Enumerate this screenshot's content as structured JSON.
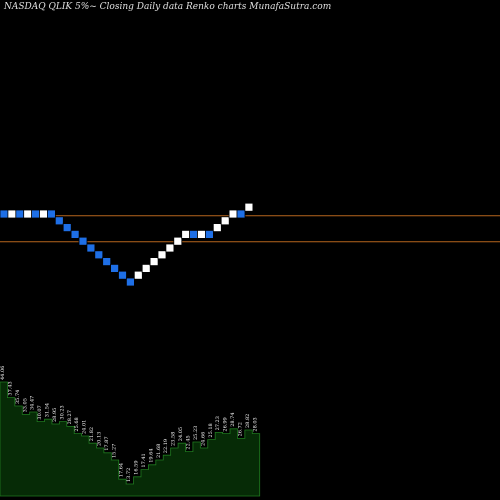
{
  "caption": "NASDAQ QLIK 5%~ Closing Daily data Renko charts MunafaSutra.com",
  "colors": {
    "background": "#000000",
    "up_brick": "#ffffff",
    "down_brick": "#1e6fe6",
    "brick_stroke": "#000000",
    "level_line": "#b5651d",
    "volume_fill": "#062b06",
    "volume_stroke": "#1f7a1f",
    "volume_label": "#ffffff"
  },
  "chart_data": {
    "type": "renko",
    "title": "NASDAQ QLIK 5%~ Closing Daily data Renko charts MunafaSutra.com",
    "brick_size_pct": 5,
    "bricks": [
      {
        "col": 0,
        "level": 10,
        "dir": "down"
      },
      {
        "col": 1,
        "level": 10,
        "dir": "up"
      },
      {
        "col": 2,
        "level": 10,
        "dir": "down"
      },
      {
        "col": 3,
        "level": 10,
        "dir": "up"
      },
      {
        "col": 4,
        "level": 10,
        "dir": "down"
      },
      {
        "col": 5,
        "level": 10,
        "dir": "up"
      },
      {
        "col": 6,
        "level": 10,
        "dir": "down"
      },
      {
        "col": 7,
        "level": 9,
        "dir": "down"
      },
      {
        "col": 8,
        "level": 8,
        "dir": "down"
      },
      {
        "col": 9,
        "level": 7,
        "dir": "down"
      },
      {
        "col": 10,
        "level": 6,
        "dir": "down"
      },
      {
        "col": 11,
        "level": 5,
        "dir": "down"
      },
      {
        "col": 12,
        "level": 4,
        "dir": "down"
      },
      {
        "col": 13,
        "level": 3,
        "dir": "down"
      },
      {
        "col": 14,
        "level": 2,
        "dir": "down"
      },
      {
        "col": 15,
        "level": 1,
        "dir": "down"
      },
      {
        "col": 16,
        "level": 0,
        "dir": "down"
      },
      {
        "col": 17,
        "level": 1,
        "dir": "up"
      },
      {
        "col": 18,
        "level": 2,
        "dir": "up"
      },
      {
        "col": 19,
        "level": 3,
        "dir": "up"
      },
      {
        "col": 20,
        "level": 4,
        "dir": "up"
      },
      {
        "col": 21,
        "level": 5,
        "dir": "up"
      },
      {
        "col": 22,
        "level": 6,
        "dir": "up"
      },
      {
        "col": 23,
        "level": 7,
        "dir": "up"
      },
      {
        "col": 24,
        "level": 7,
        "dir": "down"
      },
      {
        "col": 25,
        "level": 7,
        "dir": "up"
      },
      {
        "col": 26,
        "level": 7,
        "dir": "down"
      },
      {
        "col": 27,
        "level": 8,
        "dir": "up"
      },
      {
        "col": 28,
        "level": 9,
        "dir": "up"
      },
      {
        "col": 29,
        "level": 10,
        "dir": "up"
      },
      {
        "col": 30,
        "level": 10,
        "dir": "down"
      },
      {
        "col": 31,
        "level": 11,
        "dir": "up"
      }
    ],
    "level_lines": [
      9.23,
      5.41
    ],
    "volume": [
      {
        "v": 0.95,
        "label": "44.06"
      },
      {
        "v": 0.82,
        "label": "37.43"
      },
      {
        "v": 0.75,
        "label": "35.74"
      },
      {
        "v": 0.68,
        "label": "33.05"
      },
      {
        "v": 0.7,
        "label": "34.47"
      },
      {
        "v": 0.62,
        "label": "30.07"
      },
      {
        "v": 0.64,
        "label": "31.54"
      },
      {
        "v": 0.6,
        "label": "28.95"
      },
      {
        "v": 0.62,
        "label": "30.23"
      },
      {
        "v": 0.58,
        "label": "28.27"
      },
      {
        "v": 0.52,
        "label": "25.68"
      },
      {
        "v": 0.5,
        "label": "24.01"
      },
      {
        "v": 0.44,
        "label": "21.82"
      },
      {
        "v": 0.4,
        "label": "20.13"
      },
      {
        "v": 0.36,
        "label": "17.87"
      },
      {
        "v": 0.3,
        "label": "15.27"
      },
      {
        "v": 0.14,
        "label": "17.64"
      },
      {
        "v": 0.1,
        "label": "13.72"
      },
      {
        "v": 0.16,
        "label": "16.59"
      },
      {
        "v": 0.22,
        "label": "17.41"
      },
      {
        "v": 0.26,
        "label": "19.64"
      },
      {
        "v": 0.3,
        "label": "21.68"
      },
      {
        "v": 0.34,
        "label": "22.19"
      },
      {
        "v": 0.4,
        "label": "23.58"
      },
      {
        "v": 0.44,
        "label": "24.05"
      },
      {
        "v": 0.37,
        "label": "22.45"
      },
      {
        "v": 0.45,
        "label": "25.23"
      },
      {
        "v": 0.4,
        "label": "24.66"
      },
      {
        "v": 0.47,
        "label": "25.18"
      },
      {
        "v": 0.53,
        "label": "27.23"
      },
      {
        "v": 0.52,
        "label": "26.99"
      },
      {
        "v": 0.56,
        "label": "28.74"
      },
      {
        "v": 0.48,
        "label": "26.72"
      },
      {
        "v": 0.55,
        "label": "28.82"
      },
      {
        "v": 0.52,
        "label": "28.03"
      }
    ]
  }
}
